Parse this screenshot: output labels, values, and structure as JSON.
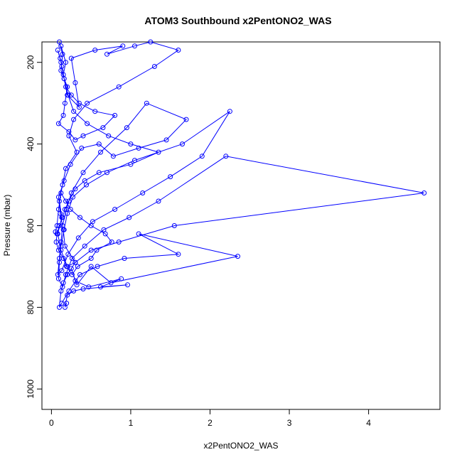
{
  "chart_data": {
    "type": "line",
    "title": "ATOM3 Southbound x2PentONO2_WAS",
    "xlabel": "x2PentONO2_WAS",
    "ylabel": "Pressure (mbar)",
    "xlim": [
      -0.12,
      4.9
    ],
    "ylim": [
      1050,
      150
    ],
    "y_reversed": true,
    "xticks": [
      0,
      1,
      2,
      3,
      4
    ],
    "yticks": [
      200,
      400,
      600,
      800,
      1000
    ],
    "grid": false,
    "legend": "none",
    "color": "#0000ff",
    "series": [
      {
        "x": [
          0.12,
          0.18,
          0.15,
          0.2,
          0.35,
          0.3,
          0.25,
          0.55,
          0.9,
          0.7,
          1.05,
          1.25,
          1.6,
          1.3,
          0.85,
          0.45,
          0.28,
          0.22,
          0.32,
          0.18,
          0.14,
          0.1,
          0.13,
          0.08,
          0.12,
          0.2,
          0.3,
          0.17,
          0.15,
          0.11,
          0.09,
          0.16,
          0.24,
          0.38,
          0.6,
          0.78,
          1.1,
          1.45,
          1.7,
          1.2,
          0.95,
          0.62,
          0.4,
          0.25,
          0.19,
          0.14,
          0.12,
          0.1,
          0.08,
          0.13,
          0.21,
          0.34,
          0.52,
          0.8,
          1.15,
          1.5,
          1.9,
          2.25,
          1.65,
          1.05,
          0.7,
          0.44,
          0.27,
          0.2,
          0.16,
          0.12,
          0.1,
          0.09,
          0.14,
          0.18,
          0.26,
          0.42,
          0.66,
          0.98,
          1.35,
          2.2,
          4.7,
          1.55,
          0.85,
          0.5,
          0.3,
          0.2,
          0.15,
          0.12,
          0.1,
          0.13,
          0.22,
          0.36,
          0.58,
          0.92,
          1.6,
          1.1,
          2.35,
          0.75,
          0.5,
          0.32,
          0.25,
          0.3,
          0.47,
          0.88,
          0.62,
          0.96,
          0.4,
          0.28,
          0.2,
          0.17,
          0.19
        ],
        "y": [
          160,
          200,
          230,
          280,
          310,
          250,
          190,
          170,
          160,
          180,
          160,
          150,
          170,
          210,
          260,
          300,
          340,
          380,
          420,
          460,
          500,
          540,
          580,
          620,
          660,
          700,
          690,
          650,
          610,
          570,
          530,
          490,
          450,
          410,
          400,
          430,
          410,
          390,
          340,
          300,
          360,
          420,
          470,
          520,
          560,
          600,
          640,
          680,
          720,
          710,
          670,
          630,
          590,
          560,
          520,
          480,
          430,
          320,
          400,
          440,
          470,
          500,
          530,
          570,
          610,
          650,
          690,
          730,
          750,
          720,
          680,
          650,
          610,
          580,
          540,
          430,
          520,
          600,
          640,
          660,
          690,
          720,
          740,
          760,
          800,
          790,
          760,
          720,
          700,
          680,
          670,
          620,
          675,
          740,
          700,
          745,
          705,
          735,
          750,
          730,
          750,
          745,
          755,
          760,
          770,
          800,
          790
        ]
      },
      {
        "x": [
          0.1,
          0.14,
          0.12,
          0.2,
          0.17,
          0.15,
          0.09,
          0.22,
          0.3,
          0.4,
          0.65,
          0.8,
          0.55,
          0.35,
          0.25,
          0.18,
          0.16,
          0.13,
          0.11,
          0.08,
          0.12,
          0.16,
          0.21,
          0.28,
          0.45,
          0.72,
          1.0,
          1.35,
          1.0,
          0.6,
          0.42,
          0.3,
          0.22,
          0.17,
          0.14,
          0.1,
          0.07,
          0.06,
          0.09,
          0.15,
          0.19,
          0.26,
          0.33,
          0.5,
          0.57,
          0.76,
          0.68,
          0.5,
          0.36,
          0.24,
          0.18,
          0.12,
          0.09,
          0.07,
          0.05
        ],
        "y": [
          150,
          180,
          220,
          260,
          300,
          330,
          350,
          370,
          390,
          380,
          360,
          330,
          320,
          300,
          280,
          260,
          240,
          210,
          190,
          170,
          200,
          240,
          280,
          320,
          350,
          380,
          400,
          420,
          450,
          470,
          490,
          510,
          540,
          560,
          580,
          600,
          620,
          640,
          660,
          680,
          700,
          720,
          700,
          680,
          660,
          640,
          620,
          600,
          580,
          560,
          540,
          520,
          560,
          600,
          615
        ]
      }
    ]
  }
}
